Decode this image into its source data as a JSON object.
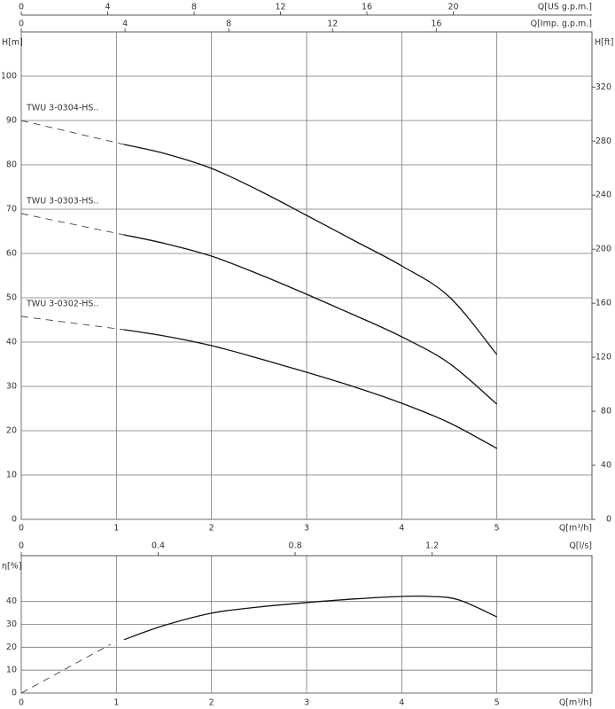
{
  "chart_data": [
    {
      "type": "line",
      "x_label": "Q[m³/h]",
      "y_label": "H[m]",
      "y2_label": "H[ft]",
      "xlim": [
        0,
        6
      ],
      "xticks": [
        0,
        1,
        2,
        3,
        4,
        5
      ],
      "ylim": [
        0,
        110
      ],
      "yticks": [
        0,
        10,
        20,
        30,
        40,
        50,
        60,
        70,
        80,
        90,
        100
      ],
      "y2lim": [
        0,
        360.9
      ],
      "y2ticks": [
        0,
        40,
        80,
        120,
        160,
        200,
        240,
        280,
        320
      ],
      "secondary_x_axes": [
        {
          "label": "Q[US g.p.m.]",
          "lim": [
            0,
            26.42
          ],
          "ticks": [
            0,
            4,
            8,
            12,
            16,
            20
          ]
        },
        {
          "label": "Q[Imp. g.p.m.]",
          "lim": [
            0,
            22.0
          ],
          "ticks": [
            0,
            4,
            8,
            12,
            16
          ]
        }
      ],
      "grid": true,
      "series": [
        {
          "color": "#444444",
          "line_style": "dashed",
          "x": [
            0,
            1.08
          ],
          "values": [
            90,
            84.6
          ]
        },
        {
          "name": "TWU 3-0304-HS..",
          "color": "#111111",
          "line_style": "solid",
          "x": [
            1.08,
            1.5,
            2,
            2.5,
            3,
            3.5,
            4,
            4.5,
            5
          ],
          "values": [
            84.6,
            82.6,
            79.2,
            74.2,
            68.6,
            62.9,
            57.2,
            50.2,
            37.2
          ]
        },
        {
          "color": "#444444",
          "line_style": "dashed",
          "x": [
            0,
            1.08
          ],
          "values": [
            69,
            64.2
          ]
        },
        {
          "name": "TWU 3-0303-HS..",
          "color": "#111111",
          "line_style": "solid",
          "x": [
            1.08,
            1.5,
            2,
            2.5,
            3,
            3.5,
            4,
            4.5,
            5
          ],
          "values": [
            64.2,
            62.3,
            59.4,
            55.3,
            50.8,
            46.1,
            41.2,
            35.2,
            26
          ]
        },
        {
          "color": "#444444",
          "line_style": "dashed",
          "x": [
            0,
            1.08
          ],
          "values": [
            45.8,
            42.8
          ]
        },
        {
          "name": "TWU 3-0302-HS..",
          "color": "#111111",
          "line_style": "solid",
          "x": [
            1.08,
            1.5,
            2,
            2.5,
            3,
            3.5,
            4,
            4.5,
            5
          ],
          "values": [
            42.8,
            41.4,
            39.2,
            36.3,
            33.2,
            29.9,
            26.2,
            21.8,
            16
          ]
        }
      ]
    },
    {
      "type": "line",
      "x_label": "Q[m³/h]",
      "y_label": "η[%]",
      "xlim": [
        0,
        6
      ],
      "xticks": [
        0,
        1,
        2,
        3,
        4,
        5
      ],
      "ylim": [
        0,
        60
      ],
      "yticks": [
        0,
        10,
        20,
        30,
        40
      ],
      "secondary_x_axes": [
        {
          "label": "Q[l/s]",
          "lim": [
            0,
            1.667
          ],
          "ticks": [
            0,
            0.4,
            0.8,
            1.2
          ]
        }
      ],
      "grid": true,
      "series": [
        {
          "color": "#444444",
          "line_style": "dashed",
          "x": [
            0,
            0.94
          ],
          "values": [
            0,
            21.3
          ]
        },
        {
          "color": "#111111",
          "line_style": "solid",
          "x": [
            1.08,
            1.5,
            2,
            2.5,
            3,
            3.5,
            4,
            4.3,
            4.6,
            5
          ],
          "values": [
            23.3,
            29.5,
            34.9,
            37.6,
            39.5,
            41.1,
            42.2,
            42.2,
            40.7,
            33.3
          ]
        }
      ]
    }
  ]
}
